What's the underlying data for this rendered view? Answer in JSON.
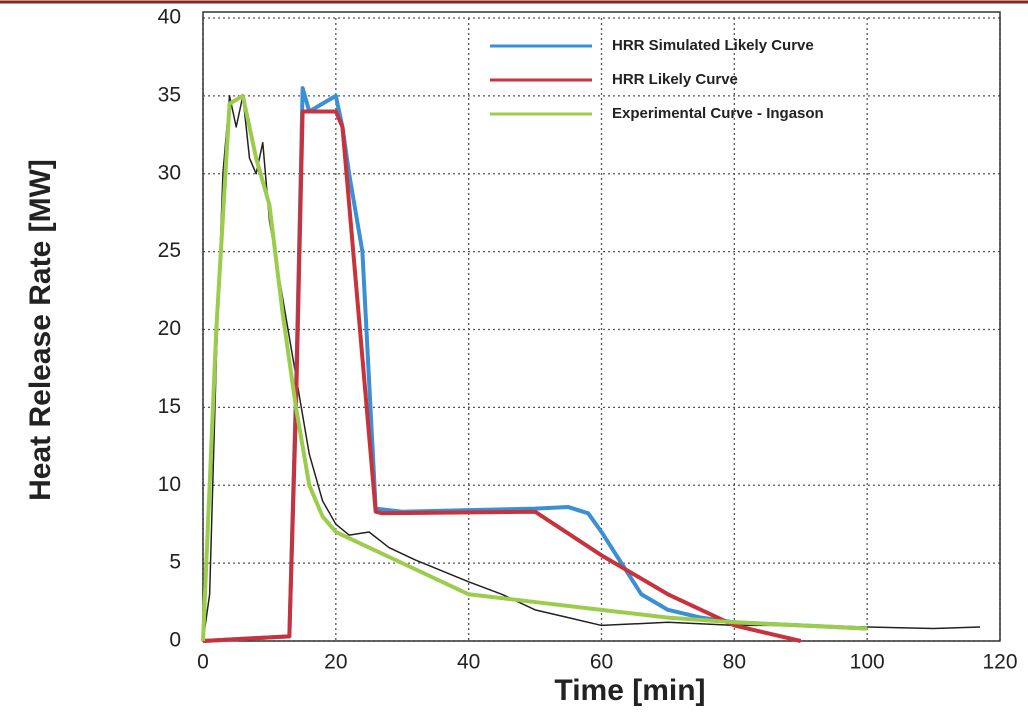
{
  "chart_data": {
    "type": "line",
    "x_label": "Time [min]",
    "y_label": "Heat Release Rate [MW]",
    "xlim": [
      0,
      120
    ],
    "xticks": [
      0,
      20,
      40,
      60,
      80,
      100,
      120
    ],
    "ylim": [
      0,
      40
    ],
    "yticks": [
      0,
      5,
      10,
      15,
      20,
      25,
      30,
      35,
      40
    ],
    "grid": true,
    "legend": "upper right",
    "series": [
      {
        "color": "#222222",
        "x": [
          0,
          1,
          2,
          3,
          4,
          5,
          6,
          7,
          8,
          9,
          10,
          12,
          14,
          16,
          18,
          20,
          22,
          25,
          28,
          32,
          36,
          40,
          45,
          50,
          55,
          60,
          70,
          80,
          90,
          100,
          110,
          117
        ],
        "values": [
          0,
          3,
          18,
          30,
          35,
          33,
          35,
          31,
          30,
          32,
          27,
          22,
          17,
          12,
          9,
          7.5,
          6.8,
          7,
          6,
          5.2,
          4.5,
          3.8,
          3,
          2,
          1.5,
          1,
          1.2,
          1,
          1,
          0.9,
          0.8,
          0.9
        ]
      },
      {
        "name": "HRR Simulated Likely Curve",
        "color": "#3b8fd4",
        "x": [
          0,
          13,
          14,
          15,
          16,
          18,
          20,
          21,
          22,
          24,
          26,
          30,
          40,
          50,
          55,
          58,
          60,
          63,
          66,
          70,
          75,
          80,
          90,
          100
        ],
        "values": [
          0,
          0.3,
          16,
          35.5,
          34,
          34.5,
          35,
          33,
          30,
          25,
          8.5,
          8.3,
          8.4,
          8.5,
          8.6,
          8.2,
          7,
          5,
          3,
          2,
          1.5,
          1.2,
          1,
          0.8
        ]
      },
      {
        "name": "HRR Likely Curve",
        "color": "#c8323c",
        "x": [
          0,
          13,
          14,
          15,
          20,
          21,
          26,
          27,
          50,
          60,
          70,
          80,
          90
        ],
        "values": [
          0,
          0.3,
          15,
          34,
          34,
          33,
          8.3,
          8.2,
          8.3,
          5.5,
          3,
          1,
          0
        ]
      },
      {
        "name": "Experimental Curve - Ingason",
        "color": "#9ccc4c",
        "x": [
          0,
          2,
          4,
          6,
          8,
          10,
          12,
          14,
          16,
          18,
          20,
          25,
          30,
          40,
          50,
          60,
          70,
          80,
          90,
          100
        ],
        "values": [
          0,
          20,
          34.5,
          35,
          31,
          28,
          21,
          15,
          10,
          8,
          7,
          6,
          5,
          3,
          2.5,
          2,
          1.5,
          1.2,
          1,
          0.8
        ]
      }
    ]
  }
}
